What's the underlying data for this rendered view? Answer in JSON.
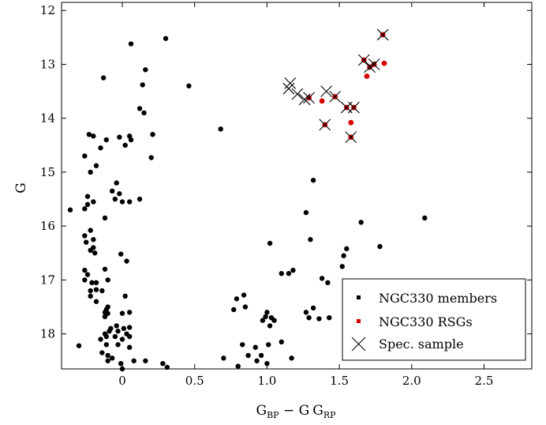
{
  "chart_data": {
    "type": "scatter",
    "xlabel": {
      "main": "G",
      "sub1": "BP",
      "mid": " − G",
      "sub2": "RP"
    },
    "ylabel": "G",
    "xlim": [
      -0.42,
      2.83
    ],
    "ylim": [
      18.65,
      11.85
    ],
    "y_inverted": true,
    "grid": false,
    "legend_placement": "bottom-right",
    "xticks": [
      0,
      0.5,
      1.0,
      1.5,
      2.0,
      2.5
    ],
    "xtick_labels": [
      "0",
      "0.5",
      "1.0",
      "1.5",
      "2.0",
      "2.5"
    ],
    "yticks": [
      12,
      13,
      14,
      15,
      16,
      17,
      18
    ],
    "ytick_labels": [
      "12",
      "13",
      "14",
      "15",
      "16",
      "17",
      "18"
    ],
    "series": [
      {
        "name": "NGC330 members",
        "marker": "point",
        "color": "#000000",
        "points": [
          [
            0.06,
            12.62
          ],
          [
            0.3,
            12.52
          ],
          [
            0.16,
            13.1
          ],
          [
            -0.13,
            13.25
          ],
          [
            0.14,
            13.38
          ],
          [
            0.46,
            13.4
          ],
          [
            0.12,
            13.82
          ],
          [
            0.15,
            13.9
          ],
          [
            0.68,
            14.2
          ],
          [
            -0.23,
            14.3
          ],
          [
            -0.2,
            14.33
          ],
          [
            -0.02,
            14.35
          ],
          [
            0.05,
            14.33
          ],
          [
            0.21,
            14.3
          ],
          [
            0.06,
            14.4
          ],
          [
            -0.11,
            14.4
          ],
          [
            -0.15,
            14.55
          ],
          [
            0.02,
            14.5
          ],
          [
            -0.26,
            14.7
          ],
          [
            0.2,
            14.73
          ],
          [
            -0.18,
            14.88
          ],
          [
            -0.22,
            15.0
          ],
          [
            -0.24,
            15.45
          ],
          [
            -0.04,
            15.2
          ],
          [
            -0.07,
            15.35
          ],
          [
            -0.02,
            15.4
          ],
          [
            -0.05,
            15.5
          ],
          [
            0.0,
            15.55
          ],
          [
            0.05,
            15.55
          ],
          [
            0.12,
            15.5
          ],
          [
            -0.2,
            15.55
          ],
          [
            -0.24,
            15.6
          ],
          [
            -0.26,
            15.68
          ],
          [
            -0.12,
            15.85
          ],
          [
            -0.36,
            15.7
          ],
          [
            -0.26,
            16.18
          ],
          [
            -0.22,
            16.08
          ],
          [
            -0.2,
            16.25
          ],
          [
            -0.25,
            16.3
          ],
          [
            -0.2,
            16.4
          ],
          [
            -0.22,
            16.45
          ],
          [
            -0.19,
            16.5
          ],
          [
            -0.01,
            16.52
          ],
          [
            0.03,
            16.65
          ],
          [
            -0.26,
            16.82
          ],
          [
            -0.24,
            16.9
          ],
          [
            -0.26,
            17.0
          ],
          [
            -0.21,
            17.05
          ],
          [
            -0.18,
            17.05
          ],
          [
            -0.22,
            17.2
          ],
          [
            -0.18,
            17.18
          ],
          [
            -0.12,
            16.8
          ],
          [
            -0.1,
            17.0
          ],
          [
            -0.14,
            17.2
          ],
          [
            -0.22,
            17.3
          ],
          [
            -0.18,
            17.4
          ],
          [
            -0.1,
            17.5
          ],
          [
            -0.11,
            17.55
          ],
          [
            -0.12,
            17.6
          ],
          [
            -0.1,
            17.62
          ],
          [
            -0.12,
            17.68
          ],
          [
            -0.08,
            17.9
          ],
          [
            -0.09,
            17.95
          ],
          [
            -0.12,
            18.0
          ],
          [
            -0.11,
            18.05
          ],
          [
            -0.15,
            18.1
          ],
          [
            -0.11,
            18.2
          ],
          [
            -0.3,
            18.22
          ],
          [
            -0.14,
            18.35
          ],
          [
            -0.1,
            18.4
          ],
          [
            -0.04,
            17.85
          ],
          [
            -0.03,
            17.95
          ],
          [
            0.01,
            17.9
          ],
          [
            0.05,
            17.88
          ],
          [
            0.03,
            18.0
          ],
          [
            0.0,
            18.1
          ],
          [
            0.05,
            18.05
          ],
          [
            -0.05,
            18.05
          ],
          [
            -0.03,
            18.2
          ],
          [
            0.05,
            18.25
          ],
          [
            -0.1,
            18.5
          ],
          [
            -0.07,
            18.45
          ],
          [
            -0.01,
            18.55
          ],
          [
            0.0,
            18.65
          ],
          [
            0.08,
            18.5
          ],
          [
            0.16,
            18.5
          ],
          [
            0.28,
            18.55
          ],
          [
            0.31,
            18.62
          ],
          [
            0.0,
            17.62
          ],
          [
            0.02,
            17.3
          ],
          [
            0.05,
            17.6
          ],
          [
            0.7,
            18.45
          ],
          [
            0.8,
            18.6
          ],
          [
            0.79,
            17.35
          ],
          [
            0.77,
            17.55
          ],
          [
            0.85,
            17.5
          ],
          [
            0.84,
            17.28
          ],
          [
            0.83,
            18.2
          ],
          [
            0.87,
            18.4
          ],
          [
            0.92,
            18.25
          ],
          [
            0.93,
            18.5
          ],
          [
            0.96,
            18.4
          ],
          [
            0.97,
            17.75
          ],
          [
            0.99,
            17.68
          ],
          [
            1.0,
            17.6
          ],
          [
            1.02,
            17.85
          ],
          [
            1.03,
            17.7
          ],
          [
            1.05,
            17.75
          ],
          [
            1.01,
            18.2
          ],
          [
            1.0,
            18.55
          ],
          [
            1.02,
            16.32
          ],
          [
            1.1,
            16.88
          ],
          [
            1.15,
            16.88
          ],
          [
            1.18,
            16.82
          ],
          [
            1.17,
            18.45
          ],
          [
            1.1,
            18.15
          ],
          [
            1.27,
            17.6
          ],
          [
            1.29,
            17.7
          ],
          [
            1.32,
            17.52
          ],
          [
            1.36,
            17.72
          ],
          [
            1.38,
            16.97
          ],
          [
            1.42,
            17.05
          ],
          [
            1.52,
            16.75
          ],
          [
            1.53,
            16.55
          ],
          [
            1.55,
            16.42
          ],
          [
            1.65,
            15.93
          ],
          [
            1.78,
            16.38
          ],
          [
            1.27,
            15.75
          ],
          [
            1.3,
            16.25
          ],
          [
            1.32,
            15.15
          ],
          [
            2.09,
            15.85
          ],
          [
            1.43,
            17.7
          ]
        ]
      },
      {
        "name": "NGC330 RSGs",
        "marker": "point",
        "color": "#d40000",
        "points": [
          [
            1.8,
            12.45
          ],
          [
            1.67,
            12.92
          ],
          [
            1.71,
            13.05
          ],
          [
            1.74,
            13.0
          ],
          [
            1.81,
            12.98
          ],
          [
            1.69,
            13.22
          ],
          [
            1.47,
            13.6
          ],
          [
            1.38,
            13.68
          ],
          [
            1.29,
            13.62
          ],
          [
            1.55,
            13.8
          ],
          [
            1.6,
            13.8
          ],
          [
            1.4,
            14.12
          ],
          [
            1.58,
            14.08
          ],
          [
            1.58,
            14.35
          ]
        ]
      },
      {
        "name": "Spec. sample",
        "marker": "x",
        "color": "#000000",
        "points": [
          [
            1.8,
            12.45
          ],
          [
            1.67,
            12.92
          ],
          [
            1.71,
            13.05
          ],
          [
            1.74,
            13.0
          ],
          [
            1.16,
            13.35
          ],
          [
            1.15,
            13.45
          ],
          [
            1.21,
            13.55
          ],
          [
            1.26,
            13.65
          ],
          [
            1.29,
            13.62
          ],
          [
            1.41,
            13.5
          ],
          [
            1.47,
            13.6
          ],
          [
            1.55,
            13.8
          ],
          [
            1.6,
            13.8
          ],
          [
            1.4,
            14.12
          ],
          [
            1.58,
            14.35
          ]
        ]
      }
    ]
  }
}
